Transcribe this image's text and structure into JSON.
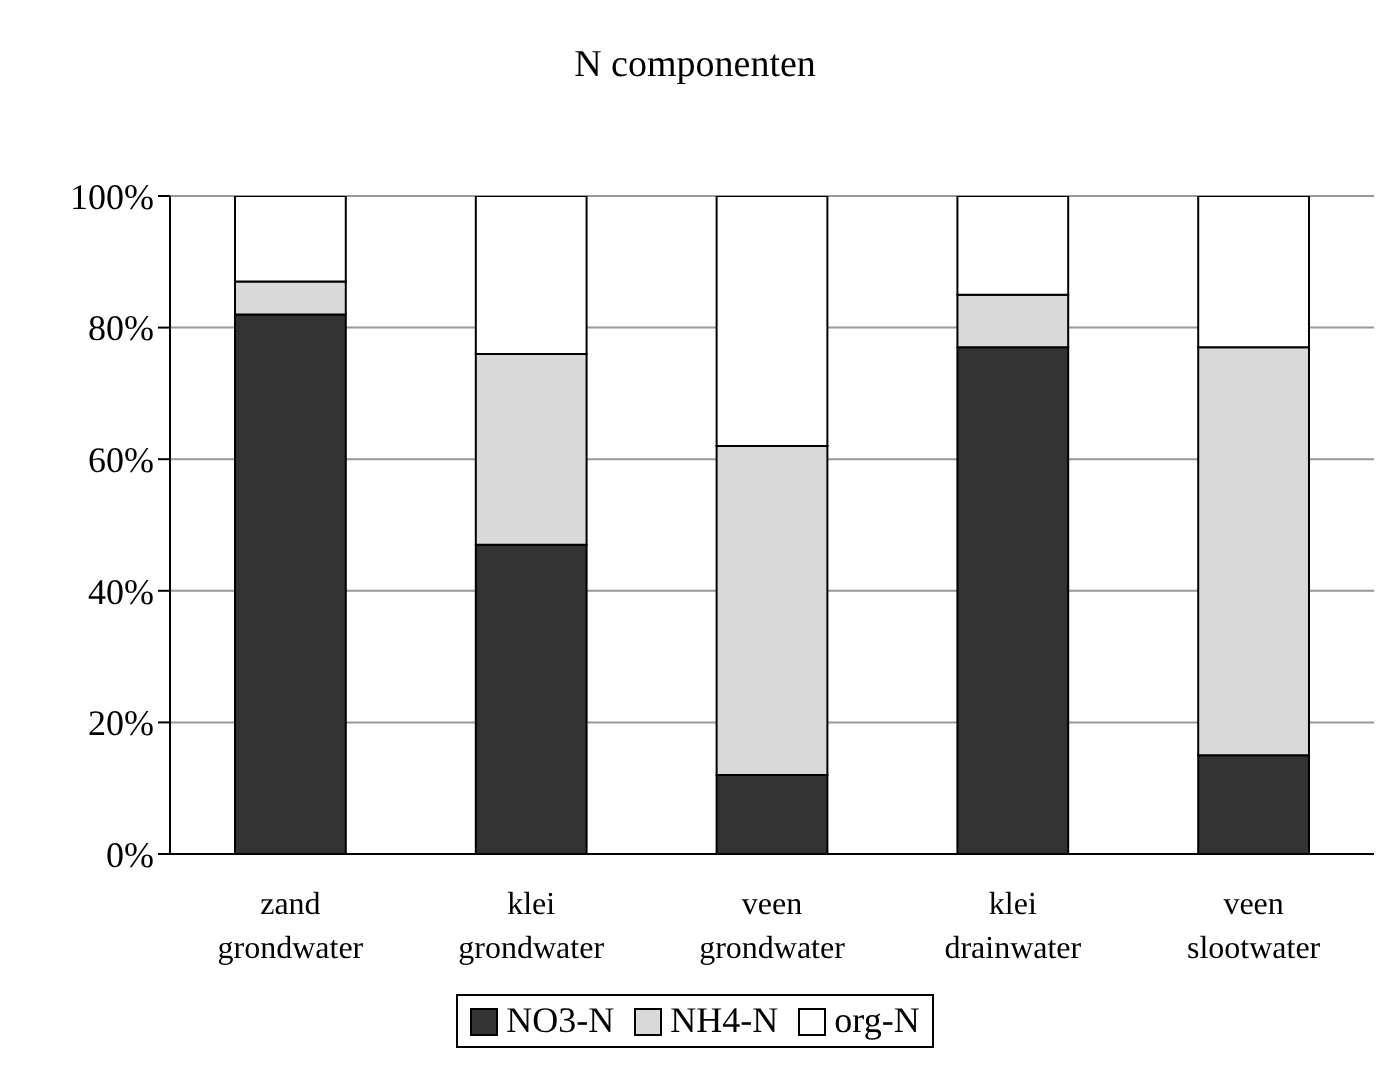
{
  "chart_data": {
    "type": "bar",
    "title": "N componenten",
    "stacked": true,
    "categories": [
      "zand\ngrondwater",
      "klei\ngrondwater",
      "veen\ngrondwater",
      "klei\ndrainwater",
      "veen\nslootwater"
    ],
    "series": [
      {
        "name": "NO3-N",
        "color": "#333333",
        "values": [
          82,
          47,
          12,
          77,
          15
        ]
      },
      {
        "name": "NH4-N",
        "color": "#d9d9d9",
        "values": [
          5,
          29,
          50,
          8,
          62
        ]
      },
      {
        "name": "org-N",
        "color": "#ffffff",
        "values": [
          13,
          24,
          38,
          15,
          23
        ]
      }
    ],
    "ylim": [
      0,
      100
    ],
    "yticks": [
      {
        "value": 0,
        "label": "0%"
      },
      {
        "value": 20,
        "label": "20%"
      },
      {
        "value": 40,
        "label": "40%"
      },
      {
        "value": 60,
        "label": "60%"
      },
      {
        "value": 80,
        "label": "80%"
      },
      {
        "value": 100,
        "label": "100%"
      }
    ],
    "grid": "y",
    "legend": "bottom"
  }
}
